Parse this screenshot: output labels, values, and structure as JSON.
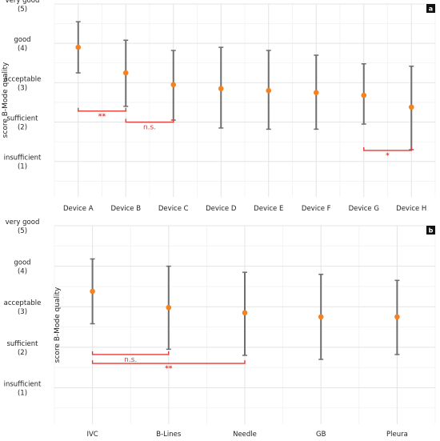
{
  "colors": {
    "point": "#f58220",
    "errorbar": "#6e6e6e",
    "significance": "#e53935",
    "grid": "#e4e4e4",
    "panel_label_bg": "#111111"
  },
  "chart_data": [
    {
      "type": "scatter",
      "panel_label": "a",
      "title": "",
      "xlabel": "",
      "ylabel": "score B-Mode quality",
      "ylim": [
        0.1,
        5.0
      ],
      "grid": true,
      "yticks": [
        {
          "value": 5,
          "label": "very good",
          "sub": "(5)"
        },
        {
          "value": 4,
          "label": "good",
          "sub": "(4)"
        },
        {
          "value": 3,
          "label": "acceptable",
          "sub": "(3)"
        },
        {
          "value": 2,
          "label": "sufficient",
          "sub": "(2)"
        },
        {
          "value": 1,
          "label": "insufficient",
          "sub": "(1)"
        }
      ],
      "categories": [
        "Device A",
        "Device B",
        "Device C",
        "Device D",
        "Device E",
        "Device F",
        "Device G",
        "Device H"
      ],
      "mean": [
        3.9,
        3.25,
        2.95,
        2.85,
        2.8,
        2.75,
        2.68,
        2.38
      ],
      "lower": [
        3.25,
        2.4,
        2.05,
        1.85,
        1.82,
        1.82,
        1.95,
        1.3
      ],
      "upper": [
        4.55,
        4.08,
        3.82,
        3.9,
        3.82,
        3.7,
        3.48,
        3.42
      ],
      "significance": [
        {
          "from": 0,
          "to": 1,
          "y": 2.28,
          "label": "**"
        },
        {
          "from": 1,
          "to": 2,
          "y": 2.0,
          "label": "n.s."
        },
        {
          "from": 6,
          "to": 7,
          "y": 1.28,
          "label": "*"
        }
      ]
    },
    {
      "type": "scatter",
      "panel_label": "b",
      "title": "",
      "xlabel": "",
      "ylabel": "score B-Mode quality",
      "ylim": [
        0.1,
        5.0
      ],
      "grid": true,
      "yticks": [
        {
          "value": 5,
          "label": "very good",
          "sub": "(5)"
        },
        {
          "value": 4,
          "label": "good",
          "sub": "(4)"
        },
        {
          "value": 3,
          "label": "acceptable",
          "sub": "(3)"
        },
        {
          "value": 2,
          "label": "sufficient",
          "sub": "(2)"
        },
        {
          "value": 1,
          "label": "insufficient",
          "sub": "(1)"
        }
      ],
      "categories": [
        "IVC",
        "B-Lines",
        "Needle",
        "GB",
        "Pleura"
      ],
      "mean": [
        3.38,
        2.98,
        2.85,
        2.75,
        2.75
      ],
      "lower": [
        2.58,
        1.95,
        1.8,
        1.7,
        1.82
      ],
      "upper": [
        4.18,
        4.0,
        3.85,
        3.8,
        3.65
      ],
      "significance": [
        {
          "from": 0,
          "to": 1,
          "y": 1.82,
          "label": "n.s."
        },
        {
          "from": 0,
          "to": 2,
          "y": 1.6,
          "label": "**"
        }
      ]
    }
  ]
}
